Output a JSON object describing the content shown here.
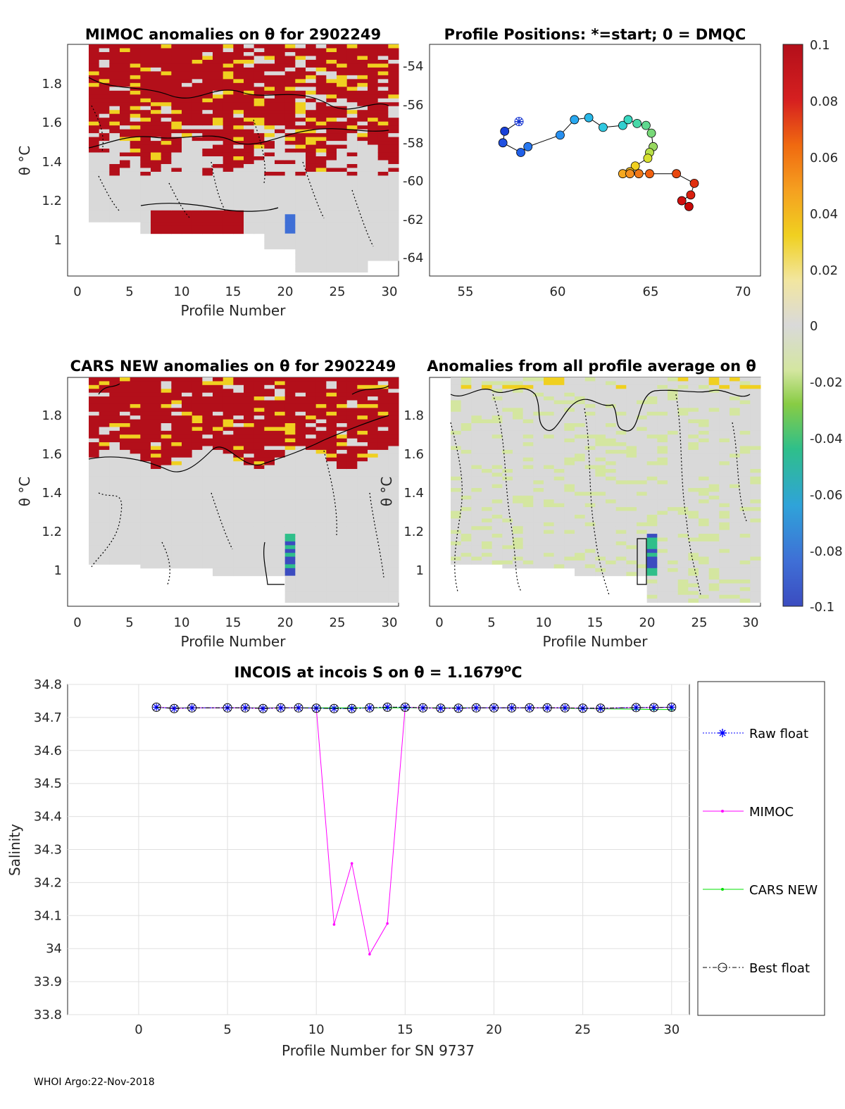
{
  "colorbar": {
    "ticks": [
      "0.1",
      "0.08",
      "0.06",
      "0.04",
      "0.02",
      "0",
      "-0.02",
      "-0.04",
      "-0.06",
      "-0.08",
      "-0.1"
    ],
    "stops": [
      "#3b4cc0",
      "#3f6fd6",
      "#2fa3d9",
      "#2fbf8a",
      "#88cc44",
      "#d4e6a0",
      "#d9d9d9",
      "#f2e6a0",
      "#f0d020",
      "#f5a020",
      "#f06a10",
      "#d62020",
      "#b30f1a"
    ]
  },
  "chart_data": [
    {
      "id": "mimoc",
      "type": "heatmap",
      "title": "MIMOC anomalies on θ  for 2902249",
      "xlabel": "Profile Number",
      "ylabel": "θ °C",
      "xlim": [
        -1,
        31
      ],
      "ylim": [
        0.79,
        1.98
      ],
      "xticks": [
        "0",
        "5",
        "10",
        "15",
        "20",
        "25",
        "30"
      ],
      "yticks": [
        "1",
        "1.2",
        "1.4",
        "1.6",
        "1.8"
      ],
      "summary": "strong positive anomalies (~0.1) above θ≈1.5 °C for profiles 2–30 and a positive block at θ 1.0–1.12 °C for profiles 7–15; near zero elsewhere"
    },
    {
      "id": "positions",
      "type": "scatter",
      "title": "Profile Positions: *=start; 0 = DMQC",
      "xlim": [
        52.5,
        71
      ],
      "ylim": [
        -65,
        -53
      ],
      "xticks": [
        "55",
        "60",
        "65",
        "70"
      ],
      "yticks": [
        "-54",
        "-56",
        "-58",
        "-60",
        "-62",
        "-64"
      ],
      "lon": [
        57.5,
        56.7,
        56.6,
        57.6,
        58.0,
        59.8,
        60.6,
        61.4,
        62.2,
        63.3,
        63.6,
        64.1,
        64.6,
        64.9,
        65.0,
        64.8,
        64.7,
        64.0,
        63.7,
        63.3,
        63.7,
        64.2,
        64.8,
        66.3,
        67.3,
        67.1,
        66.6,
        67.0
      ],
      "lat": [
        -57.0,
        -57.5,
        -58.1,
        -58.6,
        -58.3,
        -57.7,
        -56.9,
        -56.8,
        -57.3,
        -57.2,
        -56.9,
        -57.1,
        -57.2,
        -57.6,
        -58.3,
        -58.6,
        -58.9,
        -59.3,
        -59.6,
        -59.7,
        -59.7,
        -59.7,
        -59.7,
        -59.7,
        -60.2,
        -60.8,
        -61.1,
        -61.4
      ]
    },
    {
      "id": "cars",
      "type": "heatmap",
      "title": "CARS NEW anomalies on θ for 2902249",
      "xlabel": "Profile Number",
      "ylabel": "θ °C",
      "xlim": [
        -1,
        31
      ],
      "ylim": [
        0.79,
        1.98
      ],
      "xticks": [
        "0",
        "5",
        "10",
        "15",
        "20",
        "25",
        "30"
      ],
      "yticks": [
        "1",
        "1.2",
        "1.4",
        "1.6",
        "1.8"
      ],
      "summary": "strong positive anomalies above θ≈1.6 °C; near zero below; negative column at profile 20 near θ 1.0 °C"
    },
    {
      "id": "avg",
      "type": "heatmap",
      "title": "Anomalies from all profile average on θ",
      "xlabel": "Profile Number",
      "ylabel": "θ °C",
      "xlim": [
        -1,
        31
      ],
      "ylim": [
        0.79,
        1.98
      ],
      "xticks": [
        "0",
        "5",
        "10",
        "15",
        "20",
        "25",
        "30"
      ],
      "yticks": [
        "1",
        "1.2",
        "1.4",
        "1.6",
        "1.8"
      ],
      "summary": "mostly near zero; small negative column at profile 20 near θ 1.0 °C and small anomalies near the top"
    },
    {
      "id": "salinity",
      "type": "line",
      "title": "INCOIS at incois S on θ = 1.1679",
      "title_sup": "o",
      "title_unit": "C",
      "xlabel": "Profile Number for SN 9737",
      "ylabel": "Salinity",
      "xlim": [
        -4,
        31
      ],
      "ylim": [
        33.8,
        34.8
      ],
      "xticks": [
        "0",
        "5",
        "10",
        "15",
        "20",
        "25",
        "30"
      ],
      "yticks": [
        "33.8",
        "33.9",
        "34",
        "34.1",
        "34.2",
        "34.3",
        "34.4",
        "34.5",
        "34.6",
        "34.7",
        "34.8"
      ],
      "x": [
        1,
        2,
        3,
        5,
        6,
        7,
        8,
        9,
        10,
        11,
        12,
        13,
        14,
        15,
        16,
        17,
        18,
        19,
        20,
        21,
        22,
        23,
        24,
        25,
        26,
        28,
        29,
        30
      ],
      "series": [
        {
          "name": "Raw float",
          "color": "#0000ff",
          "values": [
            34.731,
            34.727,
            34.729,
            34.729,
            34.729,
            34.727,
            34.729,
            34.729,
            34.728,
            34.727,
            34.727,
            34.729,
            34.731,
            34.731,
            34.729,
            34.728,
            34.728,
            34.729,
            34.729,
            34.729,
            34.729,
            34.729,
            34.729,
            34.728,
            34.728,
            34.73,
            34.73,
            34.731
          ]
        },
        {
          "name": "MIMOC",
          "color": "#ff00ff",
          "values": [
            34.731,
            34.728,
            34.729,
            34.729,
            34.729,
            34.728,
            34.729,
            34.729,
            34.728,
            34.073,
            34.258,
            33.983,
            34.076,
            34.731,
            34.729,
            34.728,
            34.728,
            34.729,
            34.729,
            34.729,
            34.729,
            34.729,
            34.729,
            34.728,
            34.727,
            34.73,
            34.73,
            34.731
          ]
        },
        {
          "name": "CARS NEW",
          "color": "#00e000",
          "values": [
            34.73,
            34.729,
            34.729,
            34.729,
            34.729,
            34.729,
            34.729,
            34.729,
            34.729,
            34.729,
            34.729,
            34.729,
            34.729,
            34.729,
            34.729,
            34.729,
            34.729,
            34.729,
            34.729,
            34.729,
            34.729,
            34.729,
            34.728,
            34.727,
            34.726,
            34.725,
            34.724,
            34.724
          ]
        },
        {
          "name": "Best float",
          "color": "#000000",
          "values": [
            34.731,
            34.727,
            34.729,
            34.729,
            34.729,
            34.727,
            34.729,
            34.729,
            34.728,
            34.727,
            34.727,
            34.729,
            34.731,
            34.731,
            34.729,
            34.728,
            34.728,
            34.729,
            34.729,
            34.729,
            34.729,
            34.729,
            34.729,
            34.728,
            34.728,
            34.73,
            34.73,
            34.731
          ]
        }
      ]
    }
  ],
  "footer": "WHOI Argo:22-Nov-2018"
}
